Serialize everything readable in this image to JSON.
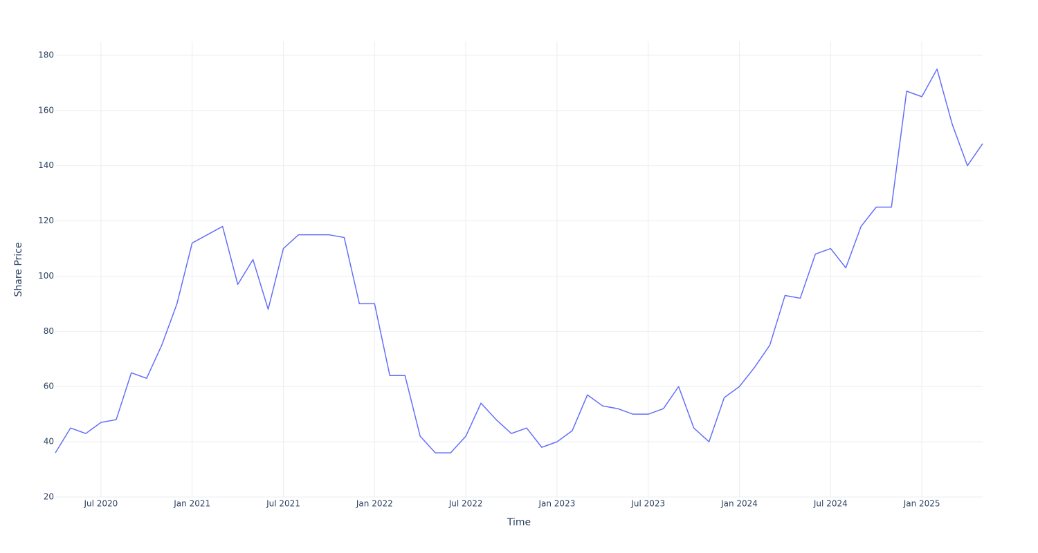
{
  "chart_data": {
    "type": "line",
    "xlabel": "Time",
    "ylabel": "Share Price",
    "x": [
      "2020-04",
      "2020-05",
      "2020-06",
      "2020-07",
      "2020-08",
      "2020-09",
      "2020-10",
      "2020-11",
      "2020-12",
      "2021-01",
      "2021-02",
      "2021-03",
      "2021-04",
      "2021-05",
      "2021-06",
      "2021-07",
      "2021-08",
      "2021-09",
      "2021-10",
      "2021-11",
      "2021-12",
      "2022-01",
      "2022-02",
      "2022-03",
      "2022-04",
      "2022-05",
      "2022-06",
      "2022-07",
      "2022-08",
      "2022-09",
      "2022-10",
      "2022-11",
      "2022-12",
      "2023-01",
      "2023-02",
      "2023-03",
      "2023-04",
      "2023-05",
      "2023-06",
      "2023-07",
      "2023-08",
      "2023-09",
      "2023-10",
      "2023-11",
      "2023-12",
      "2024-01",
      "2024-02",
      "2024-03",
      "2024-04",
      "2024-05",
      "2024-06",
      "2024-07",
      "2024-08",
      "2024-09",
      "2024-10",
      "2024-11",
      "2024-12",
      "2025-01",
      "2025-02",
      "2025-03",
      "2025-04",
      "2025-05"
    ],
    "series": [
      {
        "name": "Share Price",
        "color": "#636efa",
        "values": [
          36,
          45,
          43,
          47,
          48,
          65,
          63,
          75,
          90,
          112,
          115,
          118,
          97,
          106,
          88,
          110,
          115,
          115,
          115,
          114,
          90,
          90,
          64,
          64,
          42,
          36,
          36,
          42,
          54,
          48,
          43,
          45,
          38,
          40,
          44,
          57,
          53,
          52,
          50,
          50,
          52,
          60,
          45,
          40,
          56,
          60,
          67,
          75,
          93,
          92,
          108,
          110,
          103,
          118,
          125,
          125,
          167,
          165,
          175,
          155,
          140,
          148
        ]
      }
    ],
    "xlim": [
      "2020-04",
      "2025-05"
    ],
    "xticks": [
      {
        "value": "2020-07",
        "label": "Jul 2020"
      },
      {
        "value": "2021-01",
        "label": "Jan 2021"
      },
      {
        "value": "2021-07",
        "label": "Jul 2021"
      },
      {
        "value": "2022-01",
        "label": "Jan 2022"
      },
      {
        "value": "2022-07",
        "label": "Jul 2022"
      },
      {
        "value": "2023-01",
        "label": "Jan 2023"
      },
      {
        "value": "2023-07",
        "label": "Jul 2023"
      },
      {
        "value": "2024-01",
        "label": "Jan 2024"
      },
      {
        "value": "2024-07",
        "label": "Jul 2024"
      },
      {
        "value": "2025-01",
        "label": "Jan 2025"
      }
    ],
    "ylim": [
      20,
      185
    ],
    "yticks": [
      20,
      40,
      60,
      80,
      100,
      120,
      140,
      160,
      180
    ],
    "grid": true
  }
}
